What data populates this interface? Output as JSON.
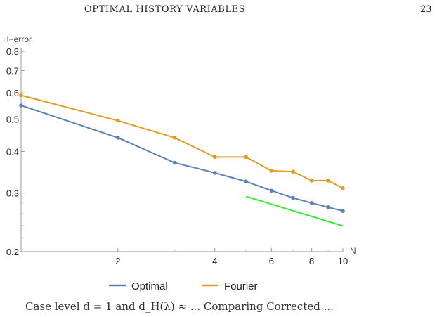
{
  "header": {
    "running_title": "OPTIMAL HISTORY VARIABLES",
    "page_number": "23"
  },
  "chart_data": {
    "type": "line",
    "title": "",
    "xlabel": "N",
    "ylabel": "H−error",
    "x_scale": "log",
    "y_scale": "log",
    "xlim": [
      1,
      10
    ],
    "ylim": [
      0.2,
      0.8
    ],
    "x_ticks": [
      "2",
      "4",
      "6",
      "8",
      "10"
    ],
    "x_tick_values": [
      2,
      4,
      6,
      8,
      10
    ],
    "y_ticks": [
      "0.8",
      "0.7",
      "0.6",
      "0.5",
      "0.4",
      "0.3",
      "0.2"
    ],
    "y_tick_values": [
      0.8,
      0.7,
      0.6,
      0.5,
      0.4,
      0.3,
      0.2
    ],
    "grid": false,
    "legend_position": "bottom",
    "series": [
      {
        "name": "Optimal",
        "color": "#5e81b5",
        "x": [
          1,
          2,
          3,
          4,
          5,
          6,
          7,
          8,
          9,
          10
        ],
        "y": [
          0.55,
          0.44,
          0.37,
          0.345,
          0.325,
          0.305,
          0.29,
          0.28,
          0.272,
          0.265
        ]
      },
      {
        "name": "Fourier",
        "color": "#e19c24",
        "x": [
          1,
          2,
          3,
          4,
          5,
          6,
          7,
          8,
          9,
          10
        ],
        "y": [
          0.59,
          0.495,
          0.44,
          0.385,
          0.385,
          0.35,
          0.348,
          0.327,
          0.327,
          0.31
        ]
      }
    ],
    "reference_line": {
      "color": "#33ee33",
      "x": [
        5,
        10
      ],
      "y": [
        0.293,
        0.239
      ]
    }
  },
  "caption": {
    "text": "Case level d = 1 and d_H(λ) ≈ ... Comparing Corrected ..."
  }
}
